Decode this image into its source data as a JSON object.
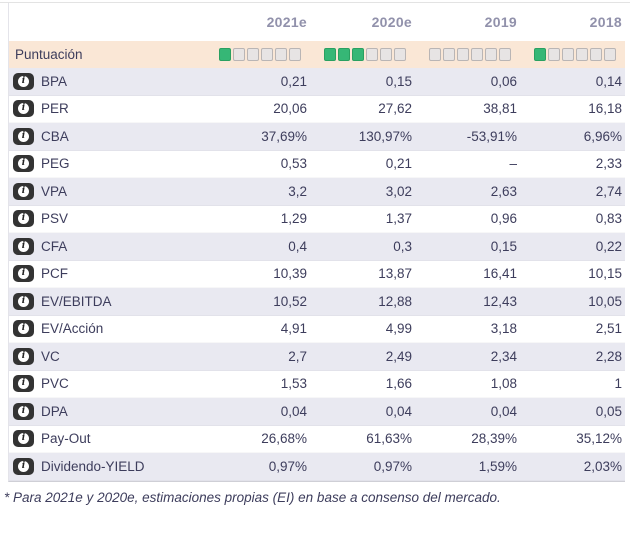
{
  "header": {
    "year_columns": [
      "2021e",
      "2020e",
      "2019",
      "2018"
    ]
  },
  "score_row": {
    "label": "Puntuación",
    "max_squares": 6,
    "scores_filled": [
      1,
      3,
      0,
      1
    ]
  },
  "metrics": [
    {
      "label": "BPA",
      "values": [
        "0,21",
        "0,15",
        "0,06",
        "0,14"
      ]
    },
    {
      "label": "PER",
      "values": [
        "20,06",
        "27,62",
        "38,81",
        "16,18"
      ]
    },
    {
      "label": "CBA",
      "values": [
        "37,69%",
        "130,97%",
        "-53,91%",
        "6,96%"
      ]
    },
    {
      "label": "PEG",
      "values": [
        "0,53",
        "0,21",
        "–",
        "2,33"
      ]
    },
    {
      "label": "VPA",
      "values": [
        "3,2",
        "3,02",
        "2,63",
        "2,74"
      ]
    },
    {
      "label": "PSV",
      "values": [
        "1,29",
        "1,37",
        "0,96",
        "0,83"
      ]
    },
    {
      "label": "CFA",
      "values": [
        "0,4",
        "0,3",
        "0,15",
        "0,22"
      ]
    },
    {
      "label": "PCF",
      "values": [
        "10,39",
        "13,87",
        "16,41",
        "10,15"
      ]
    },
    {
      "label": "EV/EBITDA",
      "values": [
        "10,52",
        "12,88",
        "12,43",
        "10,05"
      ]
    },
    {
      "label": "EV/Acción",
      "values": [
        "4,91",
        "4,99",
        "3,18",
        "2,51"
      ]
    },
    {
      "label": "VC",
      "values": [
        "2,7",
        "2,49",
        "2,34",
        "2,28"
      ]
    },
    {
      "label": "PVC",
      "values": [
        "1,53",
        "1,66",
        "1,08",
        "1"
      ]
    },
    {
      "label": "DPA",
      "values": [
        "0,04",
        "0,04",
        "0,04",
        "0,05"
      ]
    },
    {
      "label": "Pay-Out",
      "values": [
        "26,68%",
        "61,63%",
        "28,39%",
        "35,12%"
      ]
    },
    {
      "label": "Dividendo-YIELD",
      "values": [
        "0,97%",
        "0,97%",
        "1,59%",
        "2,03%"
      ]
    }
  ],
  "footnote": "* Para 2021e y 2020e, estimaciones propias (EI) en base a consenso del mercado.",
  "icons": {
    "row_icon": "info-icon"
  },
  "colors": {
    "score_row_bg": "#fae7d6",
    "row_alt_bg": "#e9e9f1",
    "row_bg": "#ffffff",
    "square_filled": "#36b776",
    "square_empty": "#e7e4e4",
    "header_text": "#9191ab",
    "body_text": "#3d3d5c",
    "info_badge_bg": "#333333"
  }
}
